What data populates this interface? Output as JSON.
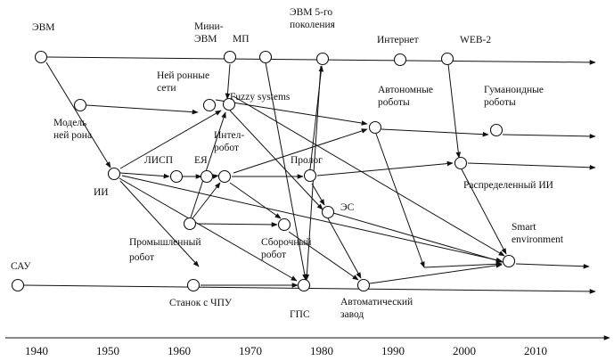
{
  "labels": {
    "evm": "ЭВМ",
    "mini_evm_1": "Мини-",
    "mini_evm_2": "ЭВМ",
    "mp": "МП",
    "evm5_1": "ЭВМ 5-го",
    "evm5_2": "поколения",
    "internet": "Интернет",
    "web2": "WEB-2",
    "neural_nets_1": "Ней ронные",
    "neural_nets_2": "сети",
    "fuzzy": "Fuzzy systems",
    "autonomous_1": "Автономные",
    "autonomous_2": "роботы",
    "humanoid_1": "Гуманоидные",
    "humanoid_2": "роботы",
    "neuron_model_1": "Модель",
    "neuron_model_2": "ней рона",
    "lisp": "ЛИСП",
    "nl": "ЕЯ",
    "intel_robot_1": "Интел-",
    "intel_robot_2": "робот",
    "prolog": "Пролог",
    "ai": "ИИ",
    "distributed_ai": "Распределенный  ИИ",
    "es": "ЭС",
    "industrial_robot_1": "Промышленный",
    "industrial_robot_2": "робот",
    "assembly_robot_1": "Сборочный",
    "assembly_robot_2": "робот",
    "smart_env_1": "Smart",
    "smart_env_2": "environment",
    "sau": "САУ",
    "cnc": "Станок с ЧПУ",
    "gps": "ГПС",
    "auto_plant_1": "Автоматический",
    "auto_plant_2": "завод"
  },
  "timeline": {
    "years": [
      "1940",
      "1950",
      "1960",
      "1970",
      "1980",
      "1990",
      "2000",
      "2010"
    ]
  },
  "nodes": [
    "evm",
    "mini_evm",
    "mp",
    "evm5",
    "internet",
    "web2",
    "neuron_model",
    "neural_nets",
    "fuzzy",
    "autonomous",
    "humanoid",
    "ai",
    "lisp",
    "nl",
    "intel_robot",
    "prolog",
    "distributed_ai",
    "es",
    "industrial_robot",
    "assembly_robot",
    "smart_env",
    "sau",
    "cnc",
    "gps",
    "auto_plant"
  ]
}
